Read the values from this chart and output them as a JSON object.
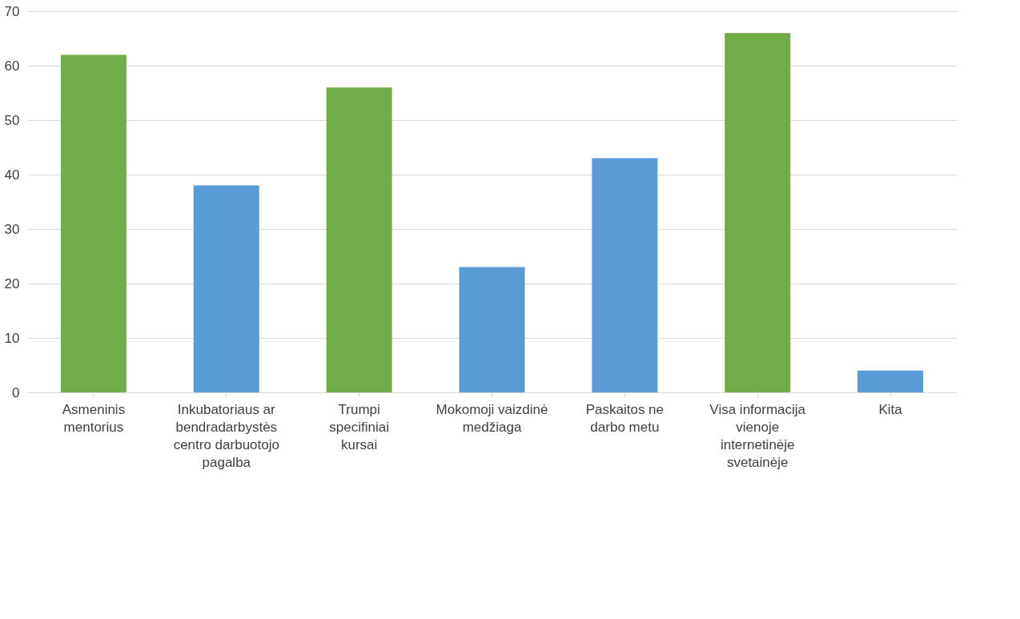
{
  "chart_data": {
    "type": "bar",
    "categories": [
      "Asmeninis mentorius",
      "Inkubatoriaus ar bendradarbystės centro darbuotojo pagalba",
      "Trumpi specifiniai kursai",
      "Mokomoji vaizdinė medžiaga",
      "Paskaitos ne darbo metu",
      "Visa informacija vienoje internetinėje svetainėje",
      "Kita"
    ],
    "values": [
      62,
      38,
      56,
      23,
      43,
      66,
      4
    ],
    "colors": [
      "#70ad47",
      "#5b9bd5",
      "#70ad47",
      "#5b9bd5",
      "#5b9bd5",
      "#70ad47",
      "#5b9bd5"
    ],
    "ylim": [
      0,
      70
    ],
    "yticks": [
      0,
      10,
      20,
      30,
      40,
      50,
      60,
      70
    ],
    "grid": "y"
  }
}
